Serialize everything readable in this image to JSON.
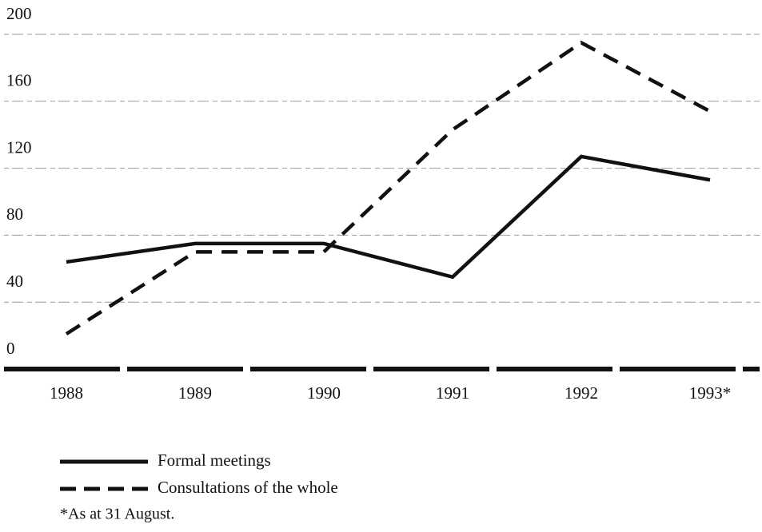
{
  "chart_data": {
    "type": "line",
    "categories": [
      "1988",
      "1989",
      "1990",
      "1991",
      "1992",
      "1993*"
    ],
    "series": [
      {
        "name": "Formal meetings",
        "color": "#111111",
        "style": "solid",
        "values": [
          64,
          75,
          75,
          55,
          127,
          113
        ]
      },
      {
        "name": "Consultations of the whole",
        "color": "#111111",
        "style": "dashed",
        "values": [
          21,
          70,
          70,
          143,
          195,
          154
        ]
      }
    ],
    "ylim": [
      0,
      200
    ],
    "yticks": [
      0,
      40,
      80,
      120,
      160,
      200
    ],
    "grid": true,
    "note": "*As at 31 August."
  }
}
